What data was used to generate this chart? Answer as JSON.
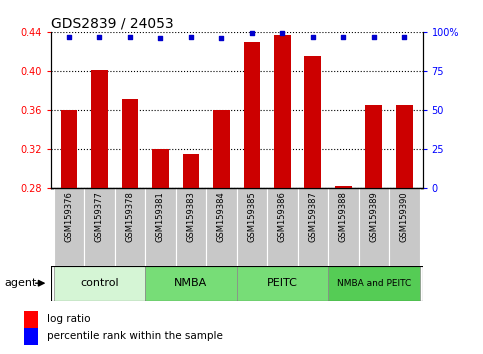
{
  "title": "GDS2839 / 24053",
  "samples": [
    "GSM159376",
    "GSM159377",
    "GSM159378",
    "GSM159381",
    "GSM159383",
    "GSM159384",
    "GSM159385",
    "GSM159386",
    "GSM159387",
    "GSM159388",
    "GSM159389",
    "GSM159390"
  ],
  "log_ratio": [
    0.36,
    0.401,
    0.371,
    0.32,
    0.315,
    0.36,
    0.43,
    0.437,
    0.415,
    0.282,
    0.365,
    0.365
  ],
  "percentile_rank": [
    97,
    97,
    97,
    96,
    97,
    96,
    99,
    99,
    97,
    97,
    97,
    97
  ],
  "groups": [
    {
      "label": "control",
      "start": 0,
      "end": 2,
      "color": "#d5f5d5"
    },
    {
      "label": "NMBA",
      "start": 3,
      "end": 5,
      "color": "#77dd77"
    },
    {
      "label": "PEITC",
      "start": 6,
      "end": 8,
      "color": "#77dd77"
    },
    {
      "label": "NMBA and PEITC",
      "start": 9,
      "end": 11,
      "color": "#55cc55"
    }
  ],
  "ylim_left": [
    0.28,
    0.44
  ],
  "ylim_right": [
    0,
    100
  ],
  "yticks_left": [
    0.28,
    0.32,
    0.36,
    0.4,
    0.44
  ],
  "yticks_right": [
    0,
    25,
    50,
    75,
    100
  ],
  "bar_color": "#cc0000",
  "dot_color": "#0000cc",
  "bar_width": 0.55,
  "title_fontsize": 10,
  "tick_label_fontsize": 7,
  "sample_fontsize": 6,
  "group_fontsize": 8,
  "legend_fontsize": 7.5,
  "agent_fontsize": 8,
  "background_gray": "#c8c8c8"
}
